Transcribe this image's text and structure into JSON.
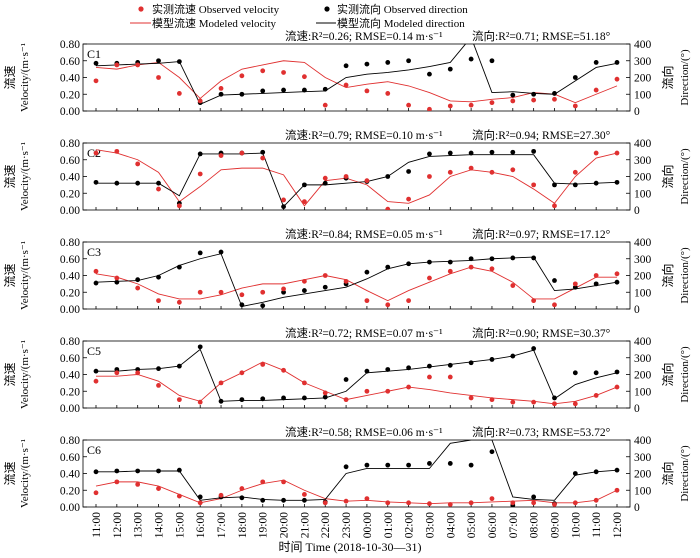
{
  "legend": {
    "obs_v": "实测流速 Observed velocity",
    "mod_v": "模型流速 Modeled velocity",
    "obs_d": "实测流向 Observed direction",
    "mod_d": "模型流向 Modeled direction"
  },
  "colors": {
    "velocity": "#e03030",
    "direction": "#000000"
  },
  "axes": {
    "y_left_label_cn": "流速",
    "y_left_label_en": "Velocity/(m·s⁻¹",
    "y_right_label_cn": "流向",
    "y_right_label_en": "Direction/(°)",
    "y_left_ticks": [
      "0.00",
      "0.20",
      "0.40",
      "0.60",
      "0.80"
    ],
    "y_right_ticks": [
      "0",
      "100",
      "200",
      "300",
      "400"
    ],
    "x_label": "时间 Time (2018-10-30—31)"
  },
  "chart_data": {
    "type": "line",
    "categories": [
      "11:00",
      "12:00",
      "13:00",
      "14:00",
      "15:00",
      "16:00",
      "17:00",
      "18:00",
      "19:00",
      "20:00",
      "21:00",
      "22:00",
      "23:00",
      "00:00",
      "01:00",
      "02:00",
      "03:00",
      "04:00",
      "05:00",
      "06:00",
      "07:00",
      "08:00",
      "09:00",
      "10:00",
      "11:00",
      "12:00"
    ],
    "ylim_left": [
      0,
      0.8
    ],
    "ylim_right": [
      0,
      400
    ],
    "panels": [
      {
        "name": "C1",
        "stats_v": "流速:R²=0.26; RMSE=0.14 m·s⁻¹",
        "stats_d": "流向:R²=0.71; RMSE=51.18°",
        "obs_v": [
          0.36,
          0.55,
          0.55,
          0.4,
          0.21,
          0.12,
          0.27,
          0.42,
          0.48,
          0.46,
          0.41,
          0.07,
          0.31,
          0.24,
          0.21,
          0.07,
          0.02,
          0.06,
          0.07,
          0.1,
          0.12,
          0.13,
          0.14,
          0.06,
          0.25,
          0.38
        ],
        "mod_v": [
          0.52,
          0.5,
          0.55,
          0.58,
          0.4,
          0.15,
          0.36,
          0.5,
          0.55,
          0.6,
          0.58,
          0.4,
          0.28,
          0.32,
          0.35,
          0.3,
          0.22,
          0.12,
          0.11,
          0.14,
          0.16,
          0.22,
          0.2,
          0.1,
          0.2,
          0.3
        ],
        "obs_d": [
          285,
          285,
          290,
          300,
          295,
          50,
          100,
          100,
          120,
          125,
          125,
          130,
          270,
          280,
          290,
          300,
          220,
          250,
          310,
          300,
          95,
          100,
          105,
          200,
          290,
          290
        ],
        "mod_d": [
          270,
          275,
          280,
          285,
          295,
          40,
          95,
          100,
          105,
          110,
          115,
          120,
          200,
          220,
          230,
          245,
          265,
          290,
          440,
          110,
          115,
          105,
          100,
          180,
          260,
          285
        ]
      },
      {
        "name": "C2",
        "stats_v": "流速:R²=0.79; RMSE=0.10 m·s⁻¹",
        "stats_d": "流向:R²=0.94; RMSE=27.30°",
        "obs_v": [
          0.68,
          0.7,
          0.55,
          0.25,
          0.05,
          0.43,
          0.65,
          0.68,
          0.62,
          0.12,
          0.1,
          0.38,
          0.4,
          0.35,
          0.01,
          0.13,
          0.4,
          0.45,
          0.5,
          0.45,
          0.48,
          0.3,
          0.05,
          0.45,
          0.68,
          0.68
        ],
        "mod_v": [
          0.72,
          0.68,
          0.6,
          0.45,
          0.1,
          0.28,
          0.48,
          0.5,
          0.5,
          0.42,
          0.05,
          0.35,
          0.38,
          0.3,
          0.1,
          0.08,
          0.18,
          0.4,
          0.48,
          0.45,
          0.4,
          0.25,
          0.08,
          0.4,
          0.62,
          0.68
        ],
        "obs_d": [
          165,
          160,
          160,
          160,
          40,
          335,
          340,
          340,
          345,
          20,
          150,
          160,
          190,
          170,
          200,
          230,
          335,
          340,
          340,
          345,
          345,
          350,
          150,
          150,
          160,
          165
        ],
        "mod_d": [
          160,
          160,
          160,
          160,
          85,
          335,
          335,
          335,
          340,
          20,
          150,
          150,
          160,
          170,
          200,
          285,
          320,
          325,
          330,
          330,
          330,
          330,
          160,
          155,
          160,
          165
        ]
      },
      {
        "name": "C3",
        "stats_v": "流速:R²=0.84; RMSE=0.05 m·s⁻¹",
        "stats_d": "流向:R²=0.97; RMSE=17.12°",
        "obs_v": [
          0.45,
          0.37,
          0.25,
          0.1,
          0.08,
          0.2,
          0.2,
          0.17,
          0.2,
          0.24,
          0.33,
          0.4,
          0.33,
          0.1,
          0.05,
          0.1,
          0.37,
          0.45,
          0.5,
          0.48,
          0.28,
          0.1,
          0.05,
          0.3,
          0.4,
          0.42
        ],
        "mod_v": [
          0.42,
          0.38,
          0.3,
          0.18,
          0.12,
          0.12,
          0.17,
          0.25,
          0.3,
          0.3,
          0.35,
          0.4,
          0.35,
          0.22,
          0.1,
          0.22,
          0.32,
          0.42,
          0.5,
          0.45,
          0.32,
          0.12,
          0.12,
          0.25,
          0.38,
          0.38
        ],
        "obs_d": [
          155,
          160,
          175,
          190,
          250,
          335,
          340,
          25,
          20,
          100,
          110,
          130,
          150,
          220,
          250,
          270,
          280,
          280,
          300,
          300,
          305,
          305,
          170,
          130,
          150,
          160
        ],
        "mod_d": [
          160,
          165,
          170,
          200,
          260,
          300,
          330,
          15,
          40,
          70,
          90,
          110,
          130,
          180,
          240,
          270,
          280,
          285,
          290,
          300,
          305,
          310,
          110,
          120,
          140,
          160
        ]
      },
      {
        "name": "C5",
        "stats_v": "流速:R²=0.72; RMSE=0.07 m·s⁻¹",
        "stats_d": "流向:R²=0.90; RMSE=30.37°",
        "obs_v": [
          0.32,
          0.42,
          0.42,
          0.27,
          0.1,
          0.07,
          0.3,
          0.42,
          0.52,
          0.45,
          0.3,
          0.18,
          0.1,
          0.2,
          0.2,
          0.25,
          0.37,
          0.37,
          0.12,
          0.1,
          0.07,
          0.07,
          0.05,
          0.05,
          0.15,
          0.25
        ],
        "mod_v": [
          0.38,
          0.38,
          0.4,
          0.32,
          0.15,
          0.08,
          0.3,
          0.42,
          0.55,
          0.45,
          0.3,
          0.2,
          0.1,
          0.15,
          0.2,
          0.25,
          0.22,
          0.18,
          0.15,
          0.12,
          0.1,
          0.08,
          0.05,
          0.08,
          0.15,
          0.25
        ],
        "obs_d": [
          220,
          230,
          230,
          235,
          250,
          365,
          40,
          50,
          55,
          60,
          60,
          65,
          170,
          220,
          230,
          240,
          250,
          255,
          270,
          290,
          310,
          355,
          60,
          210,
          210,
          215
        ],
        "mod_d": [
          220,
          220,
          230,
          235,
          250,
          350,
          40,
          45,
          45,
          50,
          55,
          60,
          100,
          210,
          220,
          230,
          245,
          260,
          275,
          290,
          310,
          345,
          55,
          140,
          180,
          210
        ]
      },
      {
        "name": "C6",
        "stats_v": "流速:R²=0.58; RMSE=0.06 m·s⁻¹",
        "stats_d": "流向:R²=0.73; RMSE=53.72°",
        "obs_v": [
          0.17,
          0.3,
          0.27,
          0.22,
          0.13,
          0.05,
          0.14,
          0.22,
          0.3,
          0.3,
          0.15,
          0.05,
          0.07,
          0.1,
          0.05,
          0.05,
          0.04,
          0.03,
          0.05,
          0.1,
          0.05,
          0.05,
          0.03,
          0.05,
          0.08,
          0.2
        ],
        "mod_v": [
          0.25,
          0.3,
          0.3,
          0.25,
          0.15,
          0.05,
          0.1,
          0.2,
          0.28,
          0.32,
          0.2,
          0.1,
          0.07,
          0.08,
          0.06,
          0.05,
          0.04,
          0.05,
          0.05,
          0.06,
          0.07,
          0.08,
          0.05,
          0.05,
          0.08,
          0.2
        ],
        "obs_d": [
          210,
          215,
          215,
          215,
          220,
          60,
          60,
          55,
          40,
          40,
          40,
          30,
          240,
          250,
          250,
          250,
          260,
          260,
          250,
          330,
          10,
          60,
          20,
          200,
          210,
          220
        ],
        "mod_d": [
          210,
          210,
          215,
          215,
          215,
          40,
          55,
          60,
          45,
          40,
          40,
          45,
          200,
          230,
          230,
          230,
          230,
          380,
          400,
          400,
          60,
          45,
          40,
          190,
          210,
          220
        ]
      }
    ]
  }
}
